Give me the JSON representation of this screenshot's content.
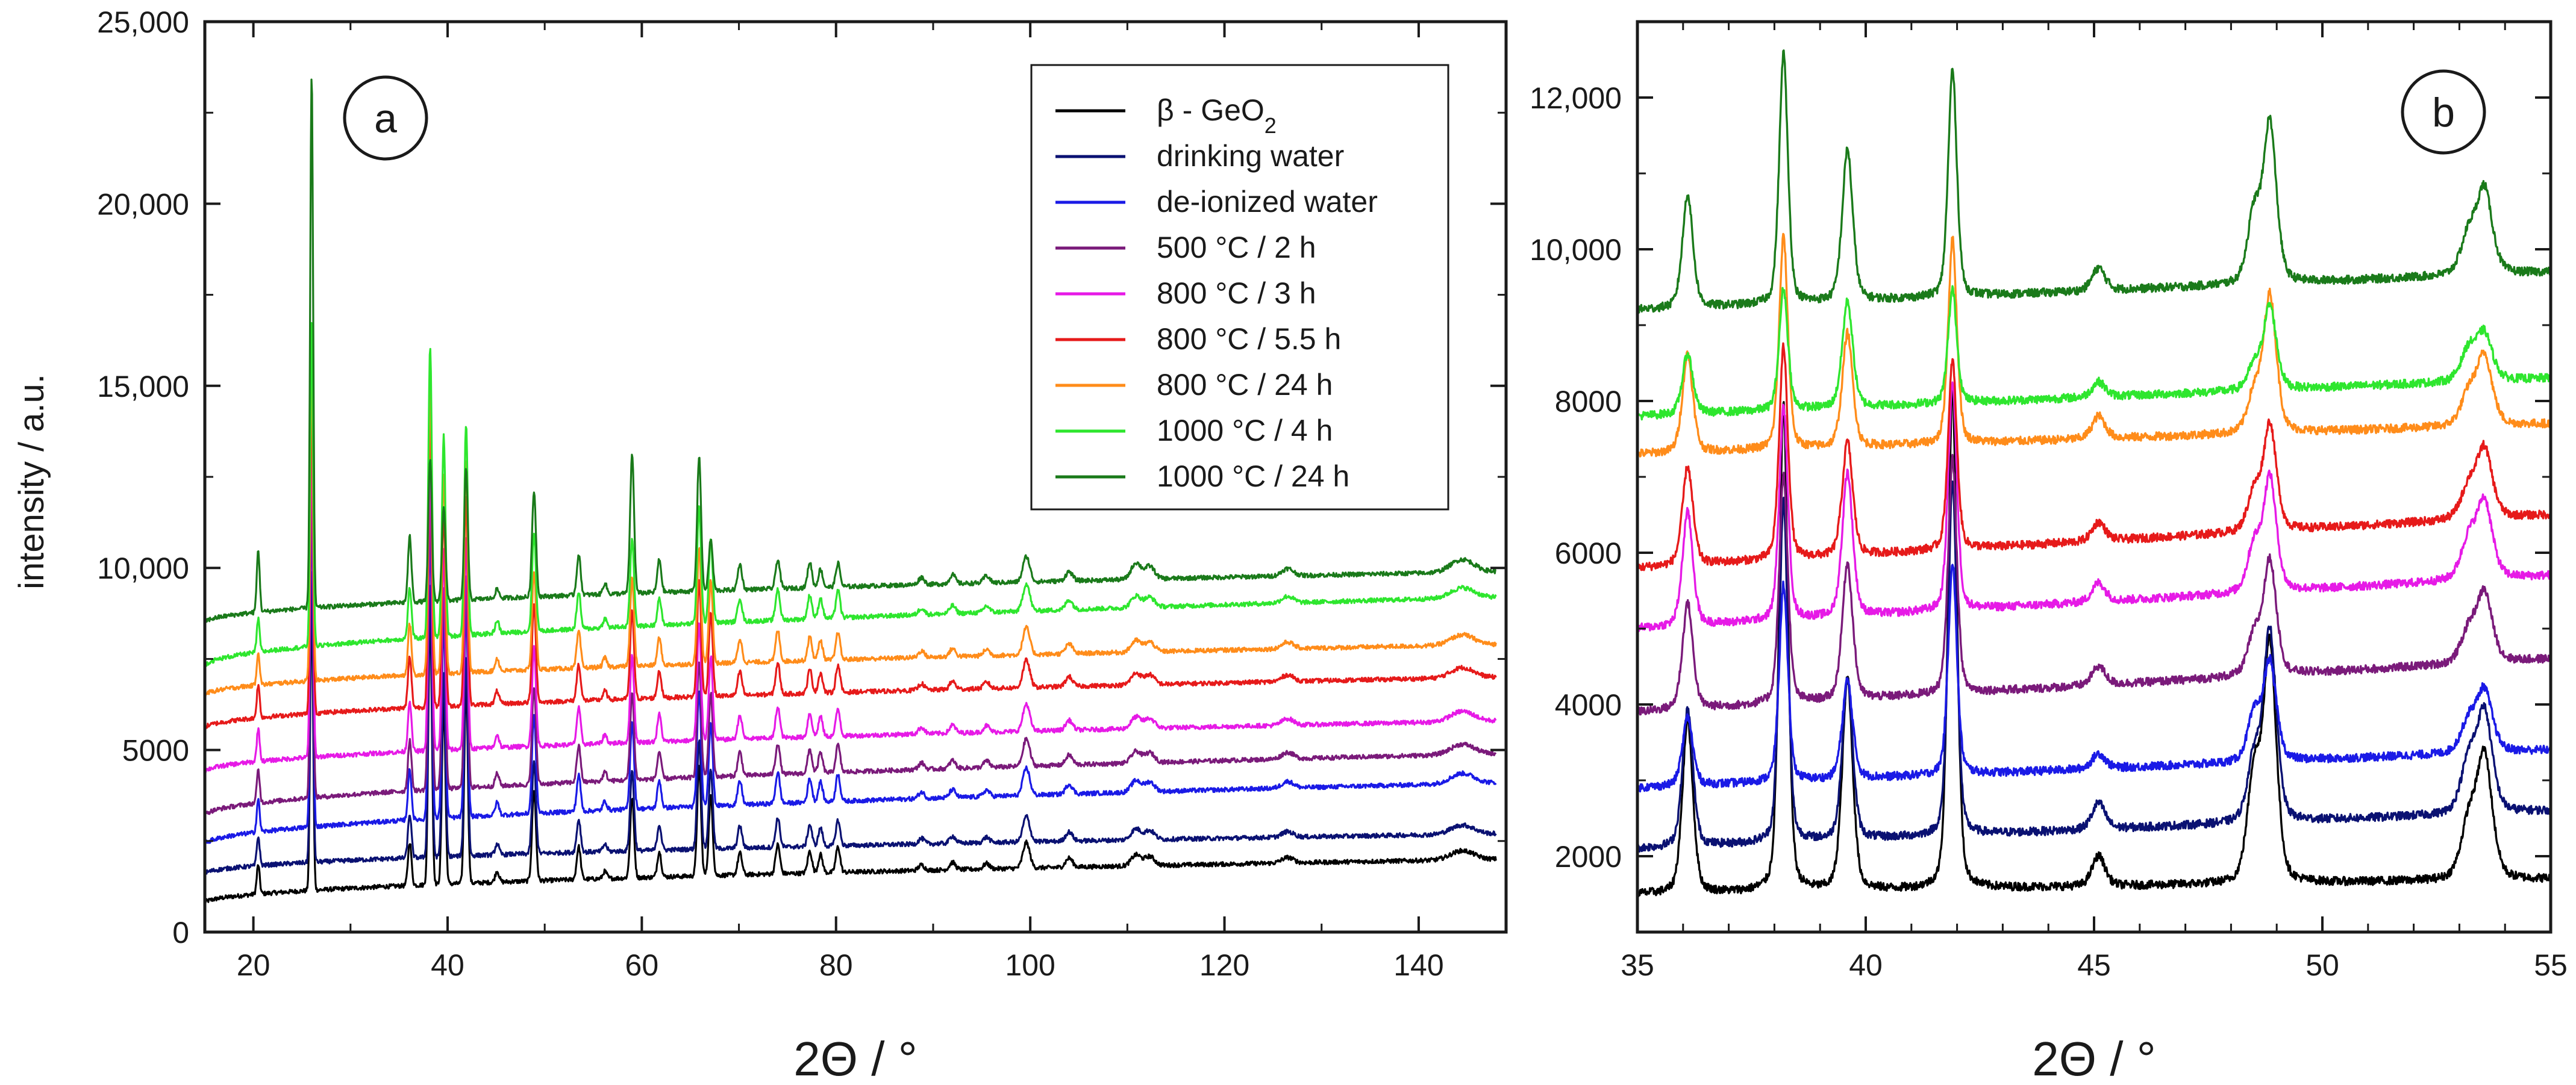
{
  "chart_data": [
    {
      "id": "a",
      "type": "line",
      "panel_label": "a",
      "xlabel": "2Θ / °",
      "ylabel": "intensity / a.u.",
      "xlim": [
        15,
        149
      ],
      "ylim": [
        0,
        25000
      ],
      "xticks": [
        20,
        40,
        60,
        80,
        100,
        120,
        140
      ],
      "xtick_labels": [
        "20",
        "40",
        "60",
        "80",
        "100",
        "120",
        "140"
      ],
      "yticks": [
        0,
        5000,
        10000,
        15000,
        20000,
        25000
      ],
      "ytick_labels": [
        "0",
        "5000",
        "10,000",
        "15,000",
        "20,000",
        "25,000"
      ],
      "legend": {
        "placement": "top-right",
        "entries": [
          {
            "label": "β - GeO",
            "sub": "2",
            "color": "#000000"
          },
          {
            "label": "drinking water",
            "color": "#0a1172"
          },
          {
            "label": "de-ionized water",
            "color": "#1a1ae6"
          },
          {
            "label": "500 °C / 2 h",
            "color": "#7a1a7a"
          },
          {
            "label": "800 °C / 3 h",
            "color": "#e61ae6"
          },
          {
            "label": "800 °C / 5.5 h",
            "color": "#e61a1a"
          },
          {
            "label": "800 °C / 24 h",
            "color": "#ff8c1a"
          },
          {
            "label": "1000 °C / 4 h",
            "color": "#2ee62e"
          },
          {
            "label": "1000 °C / 24 h",
            "color": "#1a7a1a"
          }
        ]
      },
      "peaks": [
        {
          "x": 20.5,
          "h": 1.0,
          "w": 0.15
        },
        {
          "x": 26.0,
          "h": 1.0,
          "w": 0.15
        },
        {
          "x": 36.1,
          "h": 1.0,
          "w": 0.18
        },
        {
          "x": 38.2,
          "h": 1.0,
          "w": 0.18
        },
        {
          "x": 39.6,
          "h": 1.0,
          "w": 0.18
        },
        {
          "x": 41.9,
          "h": 1.0,
          "w": 0.18
        },
        {
          "x": 45.1,
          "h": 1.0,
          "w": 0.2
        },
        {
          "x": 48.9,
          "h": 1.0,
          "w": 0.2
        },
        {
          "x": 53.5,
          "h": 1.0,
          "w": 0.2
        },
        {
          "x": 56.2,
          "h": 1.0,
          "w": 0.2
        },
        {
          "x": 59.0,
          "h": 1.0,
          "w": 0.2
        },
        {
          "x": 61.8,
          "h": 1.0,
          "w": 0.2
        },
        {
          "x": 65.9,
          "h": 1.0,
          "w": 0.2
        },
        {
          "x": 67.1,
          "h": 1.0,
          "w": 0.2
        },
        {
          "x": 70.1,
          "h": 1.0,
          "w": 0.22
        },
        {
          "x": 74.0,
          "h": 1.0,
          "w": 0.22
        },
        {
          "x": 77.3,
          "h": 1.0,
          "w": 0.22
        },
        {
          "x": 78.4,
          "h": 1.0,
          "w": 0.22
        },
        {
          "x": 80.2,
          "h": 1.0,
          "w": 0.22
        },
        {
          "x": 88.8,
          "h": 1.0,
          "w": 0.3
        },
        {
          "x": 92.0,
          "h": 1.0,
          "w": 0.3
        },
        {
          "x": 95.5,
          "h": 1.0,
          "w": 0.3
        },
        {
          "x": 99.6,
          "h": 1.0,
          "w": 0.35
        },
        {
          "x": 104.0,
          "h": 1.0,
          "w": 0.35
        },
        {
          "x": 110.9,
          "h": 1.0,
          "w": 0.5
        },
        {
          "x": 112.3,
          "h": 1.0,
          "w": 0.5
        },
        {
          "x": 126.5,
          "h": 1.0,
          "w": 0.6
        },
        {
          "x": 144.5,
          "h": 1.0,
          "w": 1.2
        }
      ],
      "peak_heights": {
        "s0": [
          800,
          8000,
          1200,
          7500,
          5000,
          5500,
          300,
          2500,
          900,
          200,
          2200,
          700,
          3000,
          2200,
          600,
          800,
          600,
          500,
          700,
          150,
          200,
          150,
          700,
          250,
          300,
          250,
          150,
          250
        ],
        "s1": [
          800,
          8000,
          1200,
          7500,
          5000,
          5500,
          300,
          2500,
          900,
          200,
          2200,
          700,
          3000,
          2200,
          600,
          800,
          600,
          500,
          700,
          150,
          200,
          150,
          700,
          250,
          300,
          250,
          150,
          250
        ],
        "s2": [
          900,
          9000,
          1400,
          8000,
          5500,
          5800,
          350,
          2700,
          1000,
          250,
          2400,
          750,
          3200,
          2300,
          650,
          850,
          650,
          550,
          750,
          180,
          220,
          180,
          750,
          270,
          320,
          270,
          180,
          280
        ],
        "s3": [
          900,
          9000,
          1400,
          8000,
          5500,
          5800,
          350,
          2700,
          1000,
          250,
          2400,
          750,
          3200,
          2300,
          650,
          850,
          650,
          550,
          750,
          180,
          220,
          180,
          750,
          270,
          320,
          270,
          180,
          280
        ],
        "s4": [
          900,
          9000,
          1400,
          8000,
          5500,
          5800,
          350,
          2700,
          1000,
          250,
          2400,
          750,
          3200,
          2300,
          650,
          850,
          650,
          550,
          750,
          180,
          220,
          180,
          750,
          270,
          320,
          270,
          180,
          280
        ],
        "s5": [
          900,
          9000,
          1400,
          8000,
          5500,
          5800,
          350,
          2700,
          1000,
          250,
          2400,
          750,
          3200,
          2300,
          650,
          850,
          650,
          550,
          750,
          180,
          220,
          180,
          750,
          270,
          320,
          270,
          180,
          280
        ],
        "s6": [
          900,
          9000,
          1400,
          8000,
          5500,
          5800,
          350,
          2700,
          1000,
          250,
          2400,
          750,
          3200,
          2300,
          650,
          850,
          650,
          550,
          750,
          180,
          220,
          180,
          750,
          270,
          320,
          270,
          180,
          280
        ],
        "s7": [
          900,
          9000,
          1400,
          8000,
          5500,
          5800,
          350,
          2700,
          1000,
          250,
          2400,
          750,
          3200,
          2300,
          650,
          850,
          650,
          550,
          750,
          180,
          220,
          180,
          750,
          270,
          320,
          270,
          180,
          280
        ],
        "s8": [
          1700,
          14600,
          1800,
          3900,
          2600,
          3600,
          250,
          2900,
          1100,
          300,
          3800,
          900,
          3700,
          1400,
          700,
          800,
          700,
          500,
          650,
          200,
          250,
          200,
          700,
          250,
          450,
          350,
          200,
          350
        ]
      },
      "series_baselines": [
        {
          "start": 800,
          "end": 2000
        },
        {
          "start": 1600,
          "end": 2700
        },
        {
          "start": 2400,
          "end": 4100
        },
        {
          "start": 3200,
          "end": 4900
        },
        {
          "start": 4400,
          "end": 5800
        },
        {
          "start": 5600,
          "end": 7000
        },
        {
          "start": 6500,
          "end": 7900
        },
        {
          "start": 7300,
          "end": 9200
        },
        {
          "start": 8500,
          "end": 9900
        }
      ]
    },
    {
      "id": "b",
      "type": "line",
      "panel_label": "b",
      "xlabel": "2Θ / °",
      "ylabel": "",
      "xlim": [
        35,
        55
      ],
      "ylim": [
        1000,
        13000
      ],
      "xticks": [
        35,
        40,
        45,
        50,
        55
      ],
      "xtick_labels": [
        "35",
        "40",
        "45",
        "50",
        "55"
      ],
      "yticks": [
        2000,
        4000,
        6000,
        8000,
        10000,
        12000
      ],
      "ytick_labels": [
        "2000",
        "4000",
        "6000",
        "8000",
        "10,000",
        "12,000"
      ],
      "peaks": [
        {
          "x": 36.1,
          "w": 0.12
        },
        {
          "x": 38.2,
          "w": 0.1
        },
        {
          "x": 39.6,
          "w": 0.12
        },
        {
          "x": 41.9,
          "w": 0.1
        },
        {
          "x": 45.1,
          "w": 0.15
        },
        {
          "x": 48.5,
          "w": 0.15
        },
        {
          "x": 48.85,
          "w": 0.15
        },
        {
          "x": 53.2,
          "w": 0.18
        },
        {
          "x": 53.55,
          "w": 0.18
        }
      ],
      "series": [
        {
          "name": "β - GeO2",
          "color": "#000000",
          "base_start": 1500,
          "base_end": 1700,
          "heights": [
            2300,
            6400,
            2800,
            6600,
            400,
            1400,
            3100,
            700,
            1600
          ]
        },
        {
          "name": "drinking water",
          "color": "#0a1172",
          "base_start": 2100,
          "base_end": 2600,
          "heights": [
            1800,
            4500,
            2100,
            4700,
            350,
            800,
            2500,
            650,
            1300
          ]
        },
        {
          "name": "de-ionized water",
          "color": "#1a1ae6",
          "base_start": 2900,
          "base_end": 3400,
          "heights": [
            900,
            2600,
            1300,
            2800,
            200,
            600,
            1300,
            400,
            800
          ]
        },
        {
          "name": "500 °C / 2 h",
          "color": "#7a1a7a",
          "base_start": 3900,
          "base_end": 4600,
          "heights": [
            1400,
            3000,
            1800,
            3100,
            250,
            500,
            1500,
            400,
            900
          ]
        },
        {
          "name": "800 °C / 3 h",
          "color": "#e61ae6",
          "base_start": 5000,
          "base_end": 5700,
          "heights": [
            1500,
            2800,
            1900,
            3000,
            250,
            600,
            1500,
            500,
            1000
          ]
        },
        {
          "name": "800 °C / 5.5 h",
          "color": "#e61a1a",
          "base_start": 5800,
          "base_end": 6500,
          "heights": [
            1300,
            2800,
            1500,
            2500,
            250,
            500,
            1400,
            400,
            900
          ]
        },
        {
          "name": "800 °C / 24 h",
          "color": "#ff8c1a",
          "base_start": 7300,
          "base_end": 7700,
          "heights": [
            1300,
            2800,
            1500,
            2700,
            300,
            500,
            1800,
            400,
            900
          ]
        },
        {
          "name": "1000 °C / 4 h",
          "color": "#2ee62e",
          "base_start": 7800,
          "base_end": 8300,
          "heights": [
            800,
            1600,
            1400,
            1500,
            200,
            300,
            1100,
            400,
            600
          ]
        },
        {
          "name": "1000 °C / 24 h",
          "color": "#1a7a1a",
          "base_start": 9200,
          "base_end": 9700,
          "heights": [
            1500,
            3300,
            2000,
            3000,
            300,
            900,
            2100,
            500,
            1100
          ]
        }
      ]
    }
  ]
}
